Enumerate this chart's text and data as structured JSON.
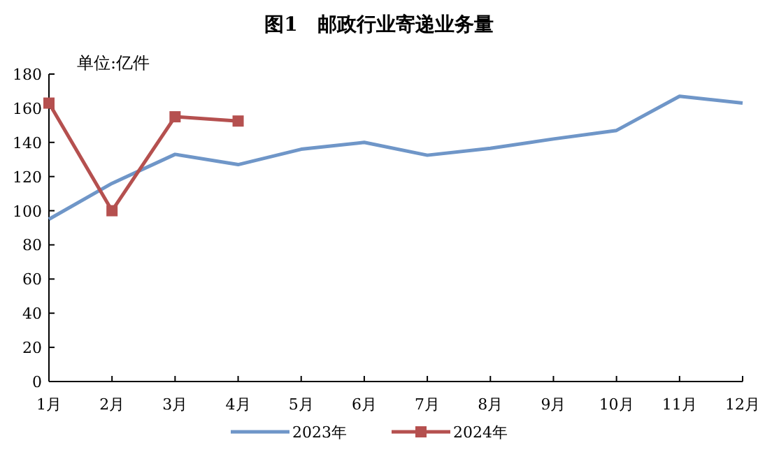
{
  "chart_data": {
    "type": "line",
    "title": "图1　邮政行业寄递业务量",
    "ylabel": "单位:亿件",
    "categories": [
      "1月",
      "2月",
      "3月",
      "4月",
      "5月",
      "6月",
      "7月",
      "8月",
      "9月",
      "10月",
      "11月",
      "12月"
    ],
    "series": [
      {
        "name": "2023年",
        "color": "#6f96c8",
        "marker": "none",
        "values": [
          95,
          116,
          133,
          127,
          136,
          140,
          132.5,
          136.5,
          142,
          147,
          167,
          163
        ]
      },
      {
        "name": "2024年",
        "color": "#b5504f",
        "marker": "square",
        "values": [
          163,
          100,
          155,
          152.5,
          null,
          null,
          null,
          null,
          null,
          null,
          null,
          null
        ]
      }
    ],
    "ylim": [
      0,
      180
    ],
    "yticks": [
      0,
      20,
      40,
      60,
      80,
      100,
      120,
      140,
      160,
      180
    ],
    "legend": "bottom"
  }
}
